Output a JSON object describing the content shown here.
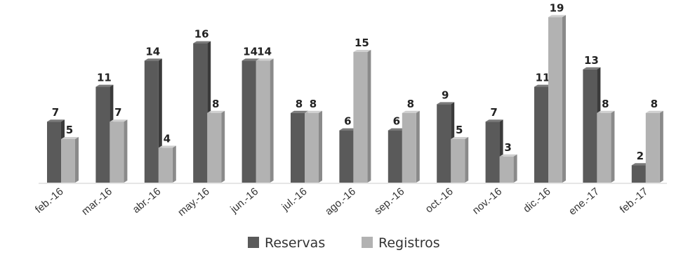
{
  "chart_data": {
    "type": "bar",
    "categories": [
      "feb.-16",
      "mar.-16",
      "abr.-16",
      "may.-16",
      "jun.-16",
      "jul.-16",
      "ago.-16",
      "sep.-16",
      "oct.-16",
      "nov.-16",
      "dic.-16",
      "ene.-17",
      "feb.-17"
    ],
    "series": [
      {
        "name": "Reservas",
        "values": [
          7,
          11,
          14,
          16,
          14,
          8,
          6,
          6,
          9,
          7,
          11,
          13,
          2
        ],
        "color": "#5a5a5a"
      },
      {
        "name": "Registros",
        "values": [
          5,
          7,
          4,
          8,
          14,
          8,
          15,
          8,
          5,
          3,
          19,
          8,
          8
        ],
        "color": "#b2b2b2"
      }
    ],
    "ylim": [
      0,
      19
    ],
    "grid": false,
    "legend": "bottom-center",
    "data_labels": true,
    "style": "3d-column"
  }
}
